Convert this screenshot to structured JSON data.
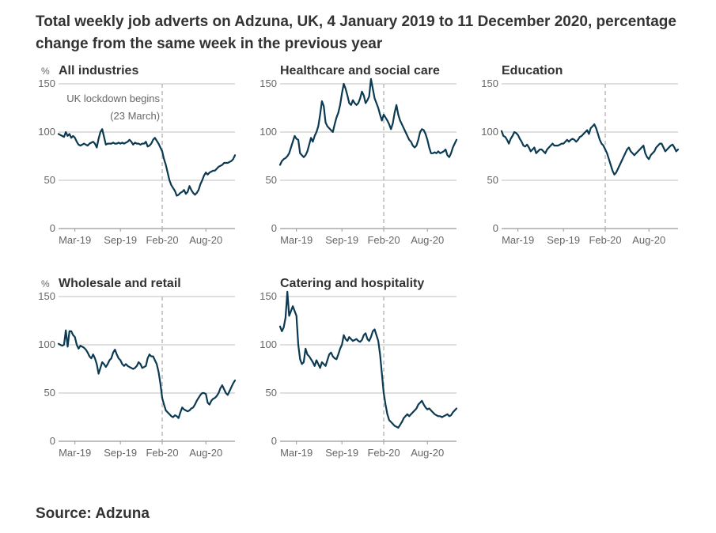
{
  "title": "Total weekly job adverts on Adzuna, UK, 4 January 2019 to 11 December 2020, percentage change from the same week in the previous year",
  "source": "Source: Adzuna",
  "colors": {
    "line": "#0b3a52",
    "grid": "#bfbfbf",
    "annotation": "#bbbbbb",
    "text": "#333333",
    "muted": "#666666"
  },
  "chart_data": [
    {
      "type": "line",
      "title": "All industries",
      "ylabel": "%",
      "ylim": [
        0,
        150
      ],
      "yticks": [
        0,
        50,
        100,
        150
      ],
      "xticks": [
        {
          "label": "Mar-19",
          "week": 10
        },
        {
          "label": "Sep-19",
          "week": 35
        },
        {
          "label": "Feb-20",
          "week": 58
        },
        {
          "label": "Aug-20",
          "week": 82
        }
      ],
      "annotation": {
        "label_line1": "UK lockdown begins",
        "label_line2": "(23 March)",
        "week": 58
      },
      "x": "weeks 1 to 98 (4 January 2019 to 11 December 2020)",
      "values": [
        98,
        97,
        96,
        95,
        100,
        96,
        98,
        94,
        96,
        94,
        90,
        87,
        86,
        87,
        88,
        87,
        86,
        88,
        89,
        90,
        88,
        84,
        93,
        100,
        103,
        95,
        87,
        88,
        88,
        88,
        89,
        88,
        88,
        89,
        88,
        89,
        88,
        89,
        90,
        92,
        90,
        87,
        89,
        88,
        88,
        87,
        88,
        88,
        90,
        85,
        86,
        88,
        92,
        94,
        91,
        88,
        84,
        80,
        72,
        66,
        58,
        50,
        45,
        42,
        39,
        34,
        35,
        37,
        38,
        40,
        36,
        38,
        44,
        40,
        37,
        35,
        37,
        40,
        46,
        50,
        55,
        58,
        56,
        58,
        59,
        60,
        60,
        62,
        64,
        65,
        66,
        68,
        68,
        68,
        69,
        70,
        72,
        76
      ]
    },
    {
      "type": "line",
      "title": "Healthcare and social care",
      "ylim": [
        0,
        150
      ],
      "yticks": [
        0,
        50,
        100,
        150
      ],
      "xticks": [
        {
          "label": "Mar-19",
          "week": 10
        },
        {
          "label": "Sep-19",
          "week": 35
        },
        {
          "label": "Feb-20",
          "week": 58
        },
        {
          "label": "Aug-20",
          "week": 82
        }
      ],
      "annotation": {
        "week": 58
      },
      "values": [
        66,
        70,
        72,
        73,
        75,
        78,
        84,
        90,
        96,
        93,
        92,
        78,
        76,
        74,
        76,
        80,
        87,
        94,
        90,
        96,
        100,
        106,
        118,
        132,
        127,
        110,
        106,
        104,
        102,
        100,
        108,
        115,
        120,
        128,
        140,
        150,
        145,
        138,
        130,
        128,
        133,
        130,
        128,
        130,
        135,
        142,
        138,
        130,
        133,
        137,
        155,
        145,
        135,
        130,
        125,
        118,
        112,
        118,
        115,
        112,
        108,
        103,
        109,
        120,
        128,
        118,
        112,
        108,
        104,
        100,
        96,
        92,
        90,
        86,
        84,
        86,
        92,
        100,
        103,
        102,
        98,
        92,
        84,
        78,
        78,
        79,
        78,
        80,
        78,
        79,
        80,
        82,
        76,
        74,
        78,
        84,
        88,
        92
      ]
    },
    {
      "type": "line",
      "title": "Education",
      "ylim": [
        0,
        150
      ],
      "yticks": [
        0,
        50,
        100,
        150
      ],
      "xticks": [
        {
          "label": "Mar-19",
          "week": 10
        },
        {
          "label": "Sep-19",
          "week": 35
        },
        {
          "label": "Feb-20",
          "week": 58
        },
        {
          "label": "Aug-20",
          "week": 82
        }
      ],
      "annotation": {
        "week": 58
      },
      "values": [
        101,
        96,
        95,
        92,
        88,
        93,
        96,
        100,
        99,
        97,
        93,
        90,
        86,
        85,
        87,
        84,
        80,
        82,
        84,
        78,
        80,
        82,
        82,
        80,
        78,
        82,
        84,
        86,
        88,
        86,
        86,
        86,
        87,
        88,
        88,
        90,
        92,
        90,
        92,
        93,
        92,
        90,
        92,
        95,
        96,
        98,
        100,
        102,
        98,
        104,
        106,
        108,
        104,
        98,
        92,
        88,
        86,
        82,
        78,
        72,
        66,
        60,
        56,
        58,
        62,
        66,
        70,
        74,
        78,
        82,
        84,
        80,
        78,
        76,
        78,
        80,
        82,
        84,
        86,
        78,
        74,
        72,
        76,
        78,
        80,
        84,
        86,
        88,
        88,
        84,
        80,
        82,
        84,
        86,
        87,
        84,
        80,
        82
      ]
    },
    {
      "type": "line",
      "title": "Wholesale and retail",
      "ylabel": "%",
      "ylim": [
        0,
        150
      ],
      "yticks": [
        0,
        50,
        100,
        150
      ],
      "xticks": [
        {
          "label": "Mar-19",
          "week": 10
        },
        {
          "label": "Sep-19",
          "week": 35
        },
        {
          "label": "Feb-20",
          "week": 58
        },
        {
          "label": "Aug-20",
          "week": 82
        }
      ],
      "annotation": {
        "week": 58
      },
      "values": [
        101,
        100,
        99,
        100,
        115,
        98,
        114,
        114,
        110,
        108,
        100,
        96,
        99,
        98,
        97,
        95,
        92,
        88,
        86,
        90,
        86,
        80,
        70,
        76,
        82,
        80,
        77,
        80,
        84,
        86,
        92,
        95,
        90,
        86,
        84,
        80,
        78,
        80,
        78,
        77,
        76,
        75,
        76,
        78,
        82,
        80,
        76,
        77,
        78,
        86,
        90,
        88,
        88,
        84,
        80,
        72,
        60,
        45,
        38,
        32,
        30,
        28,
        26,
        25,
        27,
        26,
        24,
        30,
        35,
        33,
        32,
        31,
        32,
        34,
        35,
        38,
        42,
        45,
        48,
        50,
        50,
        49,
        40,
        38,
        42,
        44,
        45,
        47,
        50,
        55,
        58,
        54,
        50,
        48,
        52,
        56,
        60,
        63
      ]
    },
    {
      "type": "line",
      "title": "Catering and hospitality",
      "ylim": [
        0,
        150
      ],
      "yticks": [
        0,
        50,
        100,
        150
      ],
      "xticks": [
        {
          "label": "Mar-19",
          "week": 10
        },
        {
          "label": "Sep-19",
          "week": 35
        },
        {
          "label": "Feb-20",
          "week": 58
        },
        {
          "label": "Aug-20",
          "week": 82
        }
      ],
      "annotation": {
        "week": 58
      },
      "values": [
        119,
        114,
        118,
        128,
        155,
        130,
        135,
        140,
        135,
        130,
        100,
        85,
        80,
        82,
        96,
        90,
        88,
        85,
        82,
        78,
        84,
        80,
        76,
        82,
        80,
        78,
        84,
        90,
        92,
        88,
        86,
        85,
        90,
        96,
        100,
        110,
        106,
        104,
        108,
        106,
        104,
        105,
        106,
        104,
        103,
        105,
        110,
        112,
        106,
        104,
        108,
        114,
        116,
        110,
        104,
        90,
        70,
        50,
        38,
        28,
        22,
        20,
        18,
        16,
        15,
        14,
        17,
        20,
        24,
        26,
        28,
        26,
        28,
        30,
        32,
        34,
        38,
        40,
        42,
        38,
        35,
        33,
        34,
        32,
        30,
        28,
        27,
        26,
        26,
        25,
        26,
        27,
        28,
        26,
        27,
        30,
        32,
        34
      ]
    }
  ]
}
